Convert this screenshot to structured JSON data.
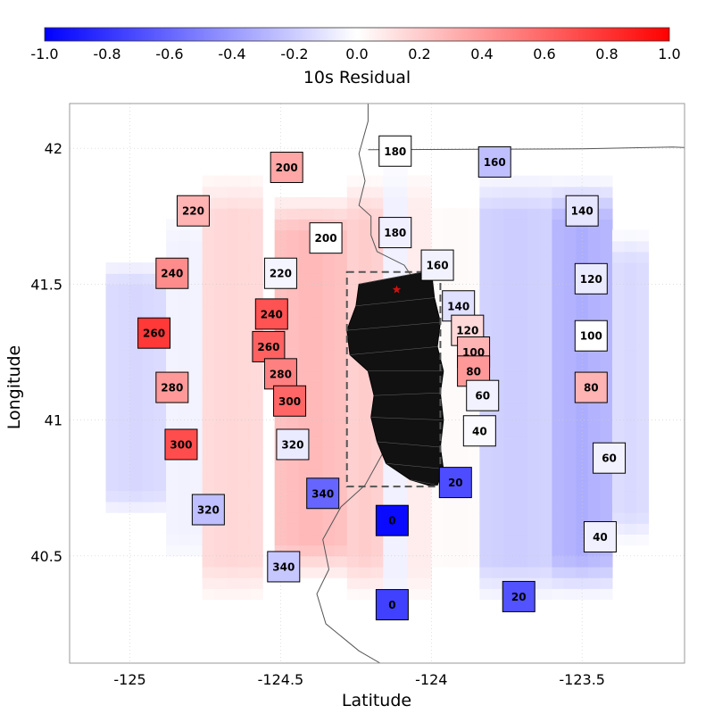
{
  "chart_data": {
    "type": "heatmap",
    "xlabel": "Latitude",
    "ylabel": "Longitude",
    "xlim": [
      -125.2,
      -123.16
    ],
    "ylim": [
      40.105,
      42.165
    ],
    "x_ticks": [
      -125,
      -124.5,
      -124,
      -123.5
    ],
    "x_tick_labels": [
      "-125",
      "-124.5",
      "-124",
      "-123.5"
    ],
    "y_ticks": [
      40.5,
      41,
      41.5,
      42
    ],
    "y_tick_labels": [
      "40.5",
      "41",
      "41.5",
      "42"
    ],
    "grid": "dotted",
    "colorbar": {
      "label": "10s Residual",
      "range": [
        -1.0,
        1.0
      ],
      "colormap": "bwr",
      "ticks": [
        -1.0,
        -0.8,
        -0.6,
        -0.4,
        -0.2,
        0.0,
        0.2,
        0.4,
        0.6,
        0.8,
        1.0
      ],
      "tick_labels": [
        "-1.0",
        "-0.8",
        "-0.6",
        "-0.4",
        "-0.2",
        "0.0",
        "0.2",
        "0.4",
        "0.6",
        "0.8",
        "1.0"
      ],
      "colors": {
        "low": "#0000ff",
        "mid": "#ffffff",
        "high": "#ff0000"
      }
    },
    "field": {
      "bands": [
        {
          "x": -124.98,
          "w": 0.2,
          "v": -0.16,
          "y_hw": 0.48
        },
        {
          "x": -124.82,
          "w": 0.16,
          "v": -0.05,
          "y_hw": 0.68
        },
        {
          "x": -124.65,
          "w": 0.22,
          "v": 0.16,
          "y_hw": 0.8
        },
        {
          "x": -124.4,
          "w": 0.26,
          "v": 0.28,
          "y_hw": 0.72
        },
        {
          "x": -124.22,
          "w": 0.14,
          "v": 0.2,
          "y_hw": 0.78
        },
        {
          "x": -124.12,
          "w": 0.06,
          "v": -0.06,
          "y_hw": 0.85
        },
        {
          "x": -124.04,
          "w": 0.12,
          "v": 0.08,
          "y_hw": 0.82
        },
        {
          "x": -123.92,
          "w": 0.14,
          "v": 0.02,
          "y_hw": 0.8
        },
        {
          "x": -123.72,
          "w": 0.26,
          "v": -0.2,
          "y_hw": 0.8
        },
        {
          "x": -123.5,
          "w": 0.22,
          "v": -0.32,
          "y_hw": 0.78
        },
        {
          "x": -123.34,
          "w": 0.16,
          "v": -0.15,
          "y_hw": 0.58
        }
      ],
      "center_y": 41.12
    },
    "markers": [
      {
        "x": -124.12,
        "y": 41.99,
        "label": "180",
        "v": 0.0
      },
      {
        "x": -124.12,
        "y": 41.69,
        "label": "180",
        "v": -0.06
      },
      {
        "x": -123.79,
        "y": 41.95,
        "label": "160",
        "v": -0.25
      },
      {
        "x": -123.98,
        "y": 41.57,
        "label": "160",
        "v": -0.05
      },
      {
        "x": -124.48,
        "y": 41.93,
        "label": "200",
        "v": 0.35
      },
      {
        "x": -124.35,
        "y": 41.67,
        "label": "200",
        "v": 0.0
      },
      {
        "x": -124.79,
        "y": 41.77,
        "label": "220",
        "v": 0.3
      },
      {
        "x": -124.5,
        "y": 41.54,
        "label": "220",
        "v": -0.04
      },
      {
        "x": -124.86,
        "y": 41.54,
        "label": "240",
        "v": 0.45
      },
      {
        "x": -124.53,
        "y": 41.39,
        "label": "240",
        "v": 0.68
      },
      {
        "x": -124.92,
        "y": 41.32,
        "label": "260",
        "v": 0.78
      },
      {
        "x": -124.54,
        "y": 41.27,
        "label": "260",
        "v": 0.62
      },
      {
        "x": -124.86,
        "y": 41.12,
        "label": "280",
        "v": 0.4
      },
      {
        "x": -124.5,
        "y": 41.17,
        "label": "280",
        "v": 0.5
      },
      {
        "x": -124.83,
        "y": 40.91,
        "label": "300",
        "v": 0.7
      },
      {
        "x": -124.47,
        "y": 41.07,
        "label": "300",
        "v": 0.6
      },
      {
        "x": -124.46,
        "y": 40.91,
        "label": "320",
        "v": -0.08
      },
      {
        "x": -124.74,
        "y": 40.67,
        "label": "320",
        "v": -0.25
      },
      {
        "x": -124.36,
        "y": 40.73,
        "label": "340",
        "v": -0.6
      },
      {
        "x": -124.49,
        "y": 40.46,
        "label": "340",
        "v": -0.22
      },
      {
        "x": -123.5,
        "y": 41.77,
        "label": "140",
        "v": -0.1
      },
      {
        "x": -123.91,
        "y": 41.42,
        "label": "140",
        "v": -0.12
      },
      {
        "x": -123.47,
        "y": 41.52,
        "label": "120",
        "v": -0.08
      },
      {
        "x": -123.88,
        "y": 41.33,
        "label": "120",
        "v": 0.15
      },
      {
        "x": -123.47,
        "y": 41.31,
        "label": "100",
        "v": 0.0
      },
      {
        "x": -123.86,
        "y": 41.25,
        "label": "100",
        "v": 0.3
      },
      {
        "x": -123.47,
        "y": 41.12,
        "label": "80",
        "v": 0.3
      },
      {
        "x": -123.86,
        "y": 41.18,
        "label": "80",
        "v": 0.4
      },
      {
        "x": -123.41,
        "y": 40.86,
        "label": "60",
        "v": -0.05
      },
      {
        "x": -123.83,
        "y": 41.09,
        "label": "60",
        "v": -0.05
      },
      {
        "x": -123.44,
        "y": 40.57,
        "label": "40",
        "v": -0.06
      },
      {
        "x": -123.84,
        "y": 40.96,
        "label": "40",
        "v": -0.02
      },
      {
        "x": -123.92,
        "y": 40.77,
        "label": "20",
        "v": -0.7
      },
      {
        "x": -123.71,
        "y": 40.35,
        "label": "20",
        "v": -0.68
      },
      {
        "x": -124.13,
        "y": 40.63,
        "label": "0",
        "v": -0.96
      },
      {
        "x": -124.13,
        "y": 40.32,
        "label": "0",
        "v": -0.75
      }
    ],
    "dashed_box": {
      "x0": -124.28,
      "x1": -123.97,
      "y0": 40.755,
      "y1": 41.545
    },
    "epicenter": {
      "x": -124.115,
      "y": 41.48
    },
    "fault_mesh": {
      "left": [
        [
          -124.24,
          41.5
        ],
        [
          -124.25,
          41.42
        ],
        [
          -124.28,
          41.33
        ],
        [
          -124.27,
          41.24
        ],
        [
          -124.21,
          41.18
        ],
        [
          -124.19,
          41.09
        ],
        [
          -124.2,
          41.01
        ],
        [
          -124.18,
          40.92
        ],
        [
          -124.15,
          40.84
        ],
        [
          -124.07,
          40.78
        ],
        [
          -124.01,
          40.76
        ]
      ],
      "right": [
        [
          -124.0,
          41.55
        ],
        [
          -123.99,
          41.45
        ],
        [
          -123.97,
          41.36
        ],
        [
          -123.98,
          41.27
        ],
        [
          -123.96,
          41.18
        ],
        [
          -123.97,
          41.1
        ],
        [
          -123.96,
          41.0
        ],
        [
          -123.97,
          40.9
        ],
        [
          -123.96,
          40.82
        ],
        [
          -123.98,
          40.76
        ],
        [
          -124.01,
          40.76
        ]
      ]
    },
    "coastline": [
      [
        -124.21,
        42.165
      ],
      [
        -124.21,
        42.1
      ],
      [
        -124.24,
        41.98
      ],
      [
        -124.22,
        41.88
      ],
      [
        -124.24,
        41.79
      ],
      [
        -124.2,
        41.75
      ],
      [
        -124.2,
        41.68
      ],
      [
        -124.18,
        41.62
      ],
      [
        -124.09,
        41.57
      ],
      [
        -124.06,
        41.52
      ],
      [
        -124.12,
        41.4
      ],
      [
        -124.14,
        41.23
      ],
      [
        -124.14,
        41.15
      ],
      [
        -124.16,
        41.07
      ],
      [
        -124.11,
        40.98
      ],
      [
        -124.17,
        40.86
      ],
      [
        -124.22,
        40.76
      ],
      [
        -124.3,
        40.68
      ],
      [
        -124.36,
        40.56
      ],
      [
        -124.34,
        40.45
      ],
      [
        -124.38,
        40.36
      ],
      [
        -124.35,
        40.25
      ],
      [
        -124.24,
        40.15
      ],
      [
        -124.17,
        40.105
      ]
    ],
    "border": [
      [
        -124.21,
        41.995
      ],
      [
        -123.5,
        41.998
      ],
      [
        -123.2,
        42.005
      ],
      [
        -123.16,
        42.003
      ]
    ]
  }
}
